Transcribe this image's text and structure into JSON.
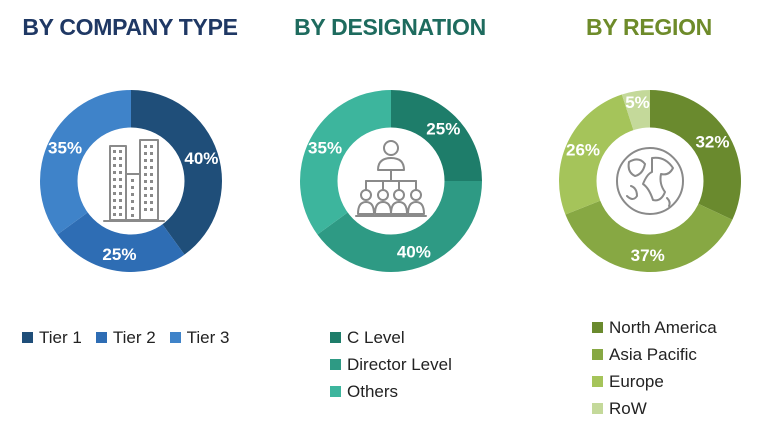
{
  "chart_data": [
    {
      "type": "pie",
      "title": "BY COMPANY TYPE",
      "title_color": "#1F3864",
      "icon": "buildings-icon",
      "legend_placement": "bottom",
      "series": [
        {
          "name": "Tier 1",
          "value": 40,
          "label": "40%",
          "color": "#1F4E79"
        },
        {
          "name": "Tier 2",
          "value": 25,
          "label": "25%",
          "color": "#2E6DB4"
        },
        {
          "name": "Tier 3",
          "value": 35,
          "label": "35%",
          "color": "#3F83C9"
        }
      ]
    },
    {
      "type": "pie",
      "title": "BY DESIGNATION",
      "title_color": "#1E6B5E",
      "icon": "org-chart-icon",
      "legend_placement": "bottom",
      "series": [
        {
          "name": "C Level",
          "value": 25,
          "label": "25%",
          "color": "#1E7D6A"
        },
        {
          "name": "Director Level",
          "value": 40,
          "label": "40%",
          "color": "#2E9A84"
        },
        {
          "name": "Others",
          "value": 35,
          "label": "35%",
          "color": "#3DB59D"
        }
      ]
    },
    {
      "type": "pie",
      "title": "BY REGION",
      "title_color": "#6E8B2A",
      "icon": "globe-icon",
      "legend_placement": "bottom",
      "series": [
        {
          "name": "North America",
          "value": 32,
          "label": "32%",
          "color": "#6A8A2E"
        },
        {
          "name": "Asia Pacific",
          "value": 37,
          "label": "37%",
          "color": "#87A843"
        },
        {
          "name": "Europe",
          "value": 26,
          "label": "26%",
          "color": "#A5C45A"
        },
        {
          "name": "RoW",
          "value": 5,
          "label": "5%",
          "color": "#C4D99A"
        }
      ]
    }
  ]
}
